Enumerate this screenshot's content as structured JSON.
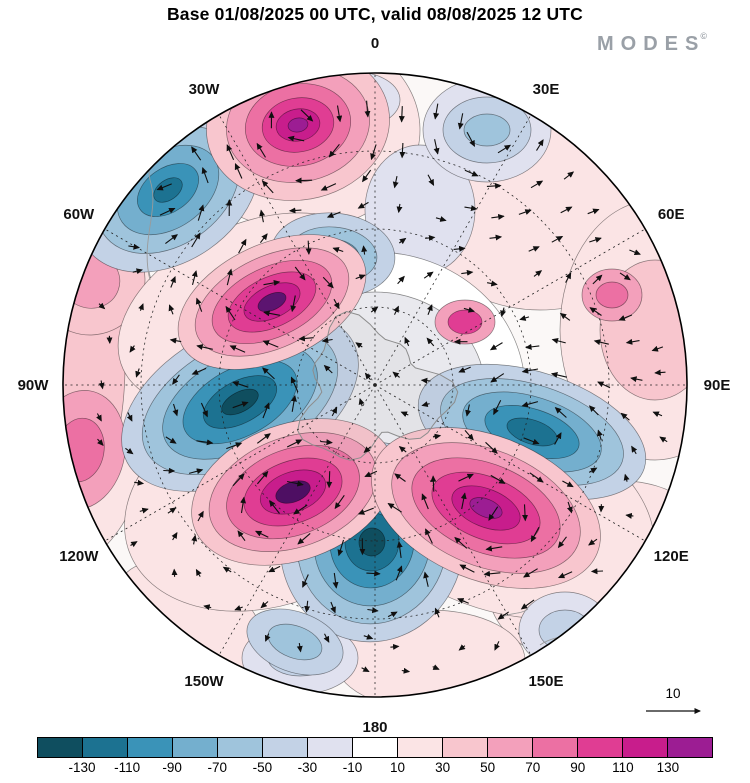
{
  "title": "Base 01/08/2025 00 UTC, valid 08/08/2025 12 UTC",
  "logo": {
    "text": "MODES",
    "mark": "©"
  },
  "map": {
    "longitude_labels": [
      "0",
      "30E",
      "60E",
      "90E",
      "120E",
      "150E",
      "180",
      "150W",
      "120W",
      "90W",
      "60W",
      "30W"
    ],
    "vector_scale_label": "10"
  },
  "chart_data": {
    "type": "heatmap",
    "title": "Base 01/08/2025 00 UTC, valid 08/08/2025 12 UTC",
    "base_time": "01/08/2025 00 UTC",
    "valid_time": "08/08/2025 12 UTC",
    "projection": "south-polar stereographic, 0 at top, longitude labels every 30 degrees",
    "source_logo": "MODES©",
    "overlays": [
      "filled anomaly contours",
      "black contour lines",
      "flow arrows",
      "dashed lat-lon graticule",
      "coastlines"
    ],
    "colorbar": {
      "orientation": "horizontal-bottom",
      "tick_labels": [
        "-130",
        "-110",
        "-90",
        "-70",
        "-50",
        "-30",
        "-10",
        "10",
        "30",
        "50",
        "70",
        "90",
        "110",
        "130"
      ],
      "colors": [
        "#0f4e5f",
        "#1c7291",
        "#3a93b8",
        "#74afce",
        "#9fc4dc",
        "#c3d2e6",
        "#e0e1ef",
        "#ffffff",
        "#fbe4e5",
        "#f8c6ce",
        "#f3a0bb",
        "#ec70a3",
        "#e03d93",
        "#c81d8c",
        "#9c1d93"
      ]
    },
    "wind_reference_vector": 10,
    "anomaly_centers": [
      {
        "position": "top center near 10W, mid-latitudes",
        "sign": "positive",
        "peak_value": 130
      },
      {
        "position": "upper left near 40W",
        "sign": "negative",
        "peak_value": -90
      },
      {
        "position": "left of pole near 55W, high latitude",
        "sign": "positive",
        "peak_value": 130
      },
      {
        "position": "center-left near 90W",
        "sign": "negative",
        "peak_value": -130
      },
      {
        "position": "lower left of pole near 120W",
        "sign": "positive",
        "peak_value": 130
      },
      {
        "position": "below pole near 165W",
        "sign": "negative",
        "peak_value": -130
      },
      {
        "position": "lower right of pole near 140E",
        "sign": "positive",
        "peak_value": 130
      },
      {
        "position": "right of pole near 100E",
        "sign": "negative",
        "peak_value": -110
      },
      {
        "position": "between pole and 0 meridian",
        "sign": "negative",
        "peak_value": -70
      },
      {
        "position": "upper right near 30E",
        "sign": "negative",
        "peak_value": -50
      },
      {
        "position": "right edge near 70E",
        "sign": "positive",
        "peak_value": 50
      },
      {
        "position": "bottom right near 155E",
        "sign": "negative",
        "peak_value": -30
      }
    ]
  }
}
